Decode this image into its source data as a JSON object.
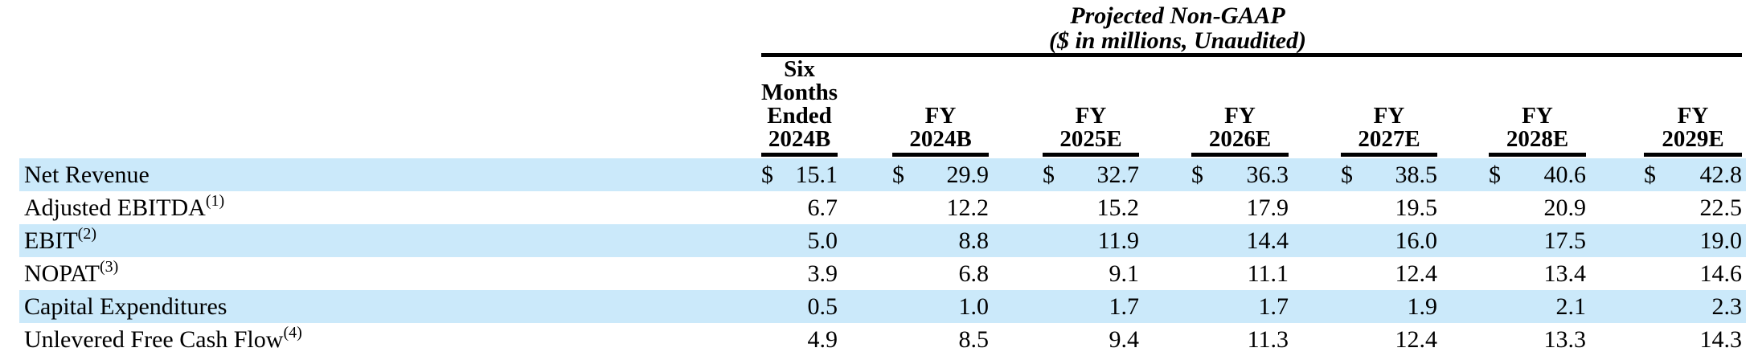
{
  "table": {
    "title": "Projected Non-GAAP",
    "subtitle": "($ in millions, Unaudited)",
    "currency_symbol": "$",
    "shaded_row_color": "#CBE9FA",
    "header": {
      "first_column_lines": [
        "Six",
        "Months",
        "Ended",
        "2024B"
      ],
      "year_columns": [
        "FY 2024B",
        "FY 2025E",
        "FY 2026E",
        "FY 2027E",
        "FY 2028E",
        "FY 2029E"
      ]
    },
    "rows": [
      {
        "label": "Net Revenue",
        "footnote": "",
        "shaded": true,
        "values": [
          "15.1",
          "29.9",
          "32.7",
          "36.3",
          "38.5",
          "40.6",
          "42.8"
        ]
      },
      {
        "label": "Adjusted EBITDA",
        "footnote": "(1)",
        "shaded": false,
        "values": [
          "6.7",
          "12.2",
          "15.2",
          "17.9",
          "19.5",
          "20.9",
          "22.5"
        ]
      },
      {
        "label": "EBIT",
        "footnote": "(2)",
        "shaded": true,
        "values": [
          "5.0",
          "8.8",
          "11.9",
          "14.4",
          "16.0",
          "17.5",
          "19.0"
        ]
      },
      {
        "label": "NOPAT",
        "footnote": "(3)",
        "shaded": false,
        "values": [
          "3.9",
          "6.8",
          "9.1",
          "11.1",
          "12.4",
          "13.4",
          "14.6"
        ]
      },
      {
        "label": "Capital Expenditures",
        "footnote": "",
        "shaded": true,
        "values": [
          "0.5",
          "1.0",
          "1.7",
          "1.7",
          "1.9",
          "2.1",
          "2.3"
        ]
      },
      {
        "label": "Unlevered Free Cash Flow",
        "footnote": "(4)",
        "shaded": false,
        "values": [
          "4.9",
          "8.5",
          "9.4",
          "11.3",
          "12.4",
          "13.3",
          "14.3"
        ]
      }
    ]
  }
}
